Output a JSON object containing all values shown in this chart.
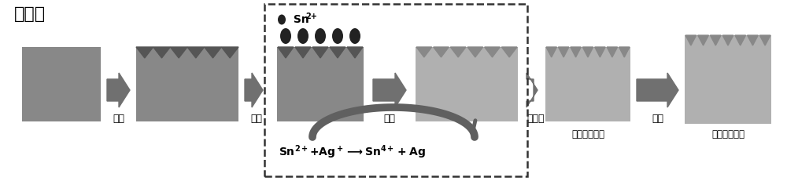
{
  "bg_color": "#ffffff",
  "gray_dark": "#888888",
  "gray_light": "#b0b0b0",
  "gray_arrow": "#707070",
  "gray_dot": "#222222",
  "gray_arc": "#606060",
  "title": "前处理",
  "step_labels": [
    "粗化",
    "敏化",
    "活化",
    "化学镀",
    "电镀"
  ],
  "sub_labels": [
    "较薄金属镀层",
    "致密金属镀层"
  ],
  "sn_label": "Sn²⁺",
  "tooth_color_dark": "#555555",
  "tooth_color_light": "#aaaaaa"
}
